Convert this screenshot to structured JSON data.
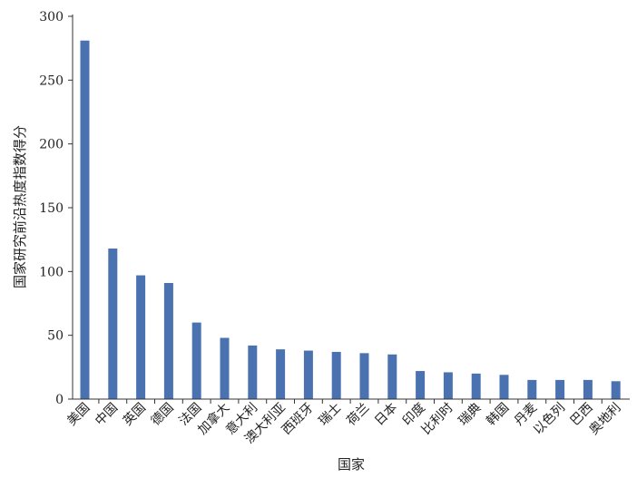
{
  "chart_data": {
    "type": "bar",
    "title": "",
    "xlabel": "国家",
    "ylabel": "国家研究前沿热度指数得分",
    "ylim": [
      0,
      300
    ],
    "yticks": [
      0,
      50,
      100,
      150,
      200,
      250,
      300
    ],
    "grid": false,
    "bar_color": "#4a72b0",
    "axis_color": "#333333",
    "categories": [
      "美国",
      "中国",
      "英国",
      "德国",
      "法国",
      "加拿大",
      "意大利",
      "澳大利亚",
      "西班牙",
      "瑞士",
      "荷兰",
      "日本",
      "印度",
      "比利时",
      "瑞典",
      "韩国",
      "丹麦",
      "以色列",
      "巴西",
      "奥地利"
    ],
    "values": [
      281,
      118,
      97,
      91,
      60,
      48,
      42,
      39,
      38,
      37,
      36,
      35,
      22,
      21,
      20,
      19,
      15,
      15,
      15,
      14
    ]
  }
}
